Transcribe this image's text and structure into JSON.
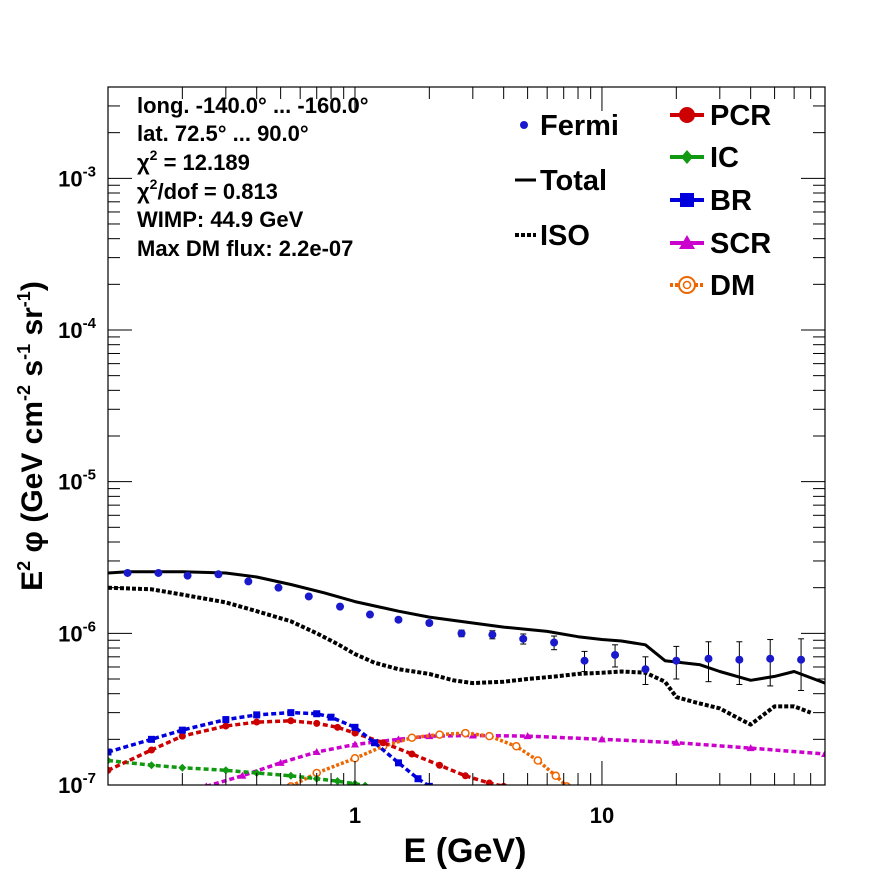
{
  "colors": {
    "total": "#000000",
    "iso": "#000000",
    "fermi": "#1a1acc",
    "pcr": "#cc0000",
    "ic": "#119911",
    "br": "#0000dd",
    "scr": "#cc00cc",
    "dm": "#ee6600"
  },
  "info": {
    "line1": "long. -140.0° ... -160.0°",
    "line2": "lat. 72.5° ... 90.0°",
    "chi2_sym": "χ",
    "chi2_sup": "2",
    "chi2_val": " = 12.189",
    "chi2dof_sym": "χ",
    "chi2dof_sup": "2",
    "chi2dof_val": "/dof = 0.813",
    "wimp": "WIMP: 44.9 GeV",
    "maxdm": "Max DM flux: 2.2e-07"
  },
  "legend": {
    "fermi": "Fermi",
    "total": "Total",
    "iso": "ISO",
    "pcr": "PCR",
    "ic": "IC",
    "br": "BR",
    "scr": "SCR",
    "dm": "DM"
  },
  "chart_data": {
    "type": "line",
    "xlabel": "E (GeV)",
    "ylabel": "E2 φ (GeV cm-2 s-1 sr-1)",
    "x_scale": "log",
    "y_scale": "log",
    "xlim": [
      0.1,
      80
    ],
    "ylim": [
      1e-07,
      0.004
    ],
    "x_tick_labels": [
      "1",
      "10"
    ],
    "y_tick_labels": [
      "10-7",
      "10-6",
      "10-5",
      "10-4",
      "10-3"
    ],
    "grid": false,
    "legend_position": "top-right",
    "fermi": {
      "x": [
        0.12,
        0.16,
        0.21,
        0.28,
        0.37,
        0.49,
        0.65,
        0.87,
        1.15,
        1.5,
        2.0,
        2.7,
        3.6,
        4.8,
        6.4,
        8.5,
        11.3,
        15,
        20,
        27,
        36,
        48,
        64
      ],
      "y": [
        2.5e-06,
        2.5e-06,
        2.4e-06,
        2.45e-06,
        2.2e-06,
        2e-06,
        1.75e-06,
        1.5e-06,
        1.33e-06,
        1.23e-06,
        1.17e-06,
        1e-06,
        9.8e-07,
        9.2e-07,
        8.7e-07,
        6.6e-07,
        7.2e-07,
        5.8e-07,
        6.6e-07,
        6.8e-07,
        6.7e-07,
        6.8e-07,
        6.7e-07
      ],
      "err": [
        5e-08,
        5e-08,
        5e-08,
        5e-08,
        5e-08,
        5e-08,
        4e-08,
        4e-08,
        4e-08,
        4e-08,
        4e-08,
        5e-08,
        6e-08,
        7e-08,
        9e-08,
        1e-07,
        1.2e-07,
        1.2e-07,
        1.6e-07,
        2e-07,
        2.1e-07,
        2.3e-07,
        2.5e-07
      ]
    },
    "series": [
      {
        "name": "Total",
        "x": [
          0.1,
          0.12,
          0.2,
          0.3,
          0.4,
          0.55,
          0.75,
          1.0,
          1.5,
          2.0,
          3.0,
          4.0,
          6.0,
          8.0,
          10,
          12,
          15,
          18,
          25,
          30,
          40,
          50,
          60,
          80
        ],
        "y": [
          2.5e-06,
          2.55e-06,
          2.55e-06,
          2.5e-06,
          2.35e-06,
          2.1e-06,
          1.85e-06,
          1.62e-06,
          1.4e-06,
          1.28e-06,
          1.17e-06,
          1.1e-06,
          1.03e-06,
          9.5e-07,
          9.1e-07,
          8.9e-07,
          8.4e-07,
          6.6e-07,
          6.2e-07,
          5.6e-07,
          4.9e-07,
          5.2e-07,
          5.6e-07,
          4.7e-07
        ]
      },
      {
        "name": "ISO",
        "x": [
          0.1,
          0.15,
          0.2,
          0.3,
          0.4,
          0.55,
          0.7,
          0.85,
          1.0,
          1.2,
          1.5,
          2.0,
          2.5,
          3.0,
          4.0,
          5.0,
          6.5,
          8.0,
          10,
          12,
          15,
          18,
          20,
          24,
          30,
          35,
          40,
          45,
          50,
          60,
          70
        ],
        "y": [
          2e-06,
          1.95e-06,
          1.8e-06,
          1.6e-06,
          1.4e-06,
          1.2e-06,
          1e-06,
          8.5e-07,
          7.3e-07,
          6.4e-07,
          5.8e-07,
          5.4e-07,
          4.9e-07,
          4.7e-07,
          4.8e-07,
          5e-07,
          5.2e-07,
          5.4e-07,
          5.5e-07,
          5.6e-07,
          5.5e-07,
          4.8e-07,
          3.8e-07,
          3.5e-07,
          3.2e-07,
          2.8e-07,
          2.5e-07,
          2.9e-07,
          3.3e-07,
          3.3e-07,
          3e-07
        ]
      },
      {
        "name": "PCR",
        "x": [
          0.1,
          0.15,
          0.2,
          0.3,
          0.4,
          0.55,
          0.7,
          0.85,
          1.0,
          1.3,
          1.7,
          2.2,
          2.8,
          3.5,
          4.0
        ],
        "y": [
          1.25e-07,
          1.7e-07,
          2.1e-07,
          2.45e-07,
          2.6e-07,
          2.65e-07,
          2.55e-07,
          2.4e-07,
          2.2e-07,
          1.9e-07,
          1.6e-07,
          1.35e-07,
          1.15e-07,
          1.03e-07,
          9.8e-08
        ]
      },
      {
        "name": "IC",
        "x": [
          0.1,
          0.15,
          0.2,
          0.3,
          0.4,
          0.55,
          0.7,
          0.85,
          1.0,
          1.1
        ],
        "y": [
          1.45e-07,
          1.35e-07,
          1.3e-07,
          1.25e-07,
          1.2e-07,
          1.15e-07,
          1.1e-07,
          1.06e-07,
          1.02e-07,
          9.9e-08
        ]
      },
      {
        "name": "BR",
        "x": [
          0.1,
          0.15,
          0.2,
          0.3,
          0.4,
          0.55,
          0.7,
          0.8,
          1.0,
          1.2,
          1.5,
          1.8,
          2.0
        ],
        "y": [
          1.65e-07,
          2e-07,
          2.3e-07,
          2.7e-07,
          2.9e-07,
          3e-07,
          2.95e-07,
          2.8e-07,
          2.4e-07,
          1.9e-07,
          1.4e-07,
          1.1e-07,
          9.8e-08
        ]
      },
      {
        "name": "SCR",
        "x": [
          0.25,
          0.35,
          0.5,
          0.7,
          1.0,
          1.5,
          2.0,
          3.0,
          5.0,
          10,
          20,
          40,
          80
        ],
        "y": [
          9.8e-08,
          1.15e-07,
          1.4e-07,
          1.65e-07,
          1.85e-07,
          2e-07,
          2.1e-07,
          2.12e-07,
          2.1e-07,
          2e-07,
          1.9e-07,
          1.75e-07,
          1.6e-07
        ]
      },
      {
        "name": "DM",
        "x": [
          0.55,
          0.7,
          1.0,
          1.3,
          1.7,
          2.2,
          2.8,
          3.5,
          4.5,
          5.5,
          6.5,
          7.2
        ],
        "y": [
          9.8e-08,
          1.2e-07,
          1.5e-07,
          1.8e-07,
          2.05e-07,
          2.15e-07,
          2.2e-07,
          2.1e-07,
          1.8e-07,
          1.45e-07,
          1.15e-07,
          9.8e-08
        ]
      }
    ]
  }
}
